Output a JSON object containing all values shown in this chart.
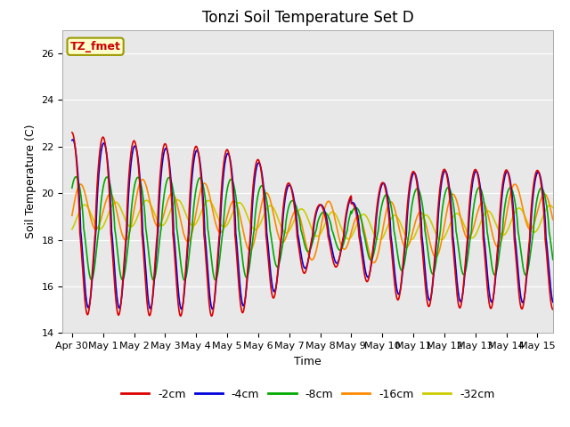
{
  "title": "Tonzi Soil Temperature Set D",
  "xlabel": "Time",
  "ylabel": "Soil Temperature (C)",
  "ylim": [
    14,
    27
  ],
  "xlim": [
    -0.3,
    15.5
  ],
  "xtick_labels": [
    "Apr 30",
    "May 1",
    "May 2",
    "May 3",
    "May 4",
    "May 5",
    "May 6",
    "May 7",
    "May 8",
    "May 9",
    "May 10",
    "May 11",
    "May 12",
    "May 13",
    "May 14",
    "May 15"
  ],
  "xtick_positions": [
    0,
    1,
    2,
    3,
    4,
    5,
    6,
    7,
    8,
    9,
    10,
    11,
    12,
    13,
    14,
    15
  ],
  "ytick_labels": [
    "14",
    "16",
    "18",
    "20",
    "22",
    "24",
    "26"
  ],
  "ytick_positions": [
    14,
    16,
    18,
    20,
    22,
    24,
    26
  ],
  "legend_label": "TZ_fmet",
  "colors": {
    "-2cm": "#dd0000",
    "-4cm": "#0000dd",
    "-8cm": "#00aa00",
    "-16cm": "#ff8800",
    "-32cm": "#cccc00"
  },
  "legend_order": [
    "-2cm",
    "-4cm",
    "-8cm",
    "-16cm",
    "-32cm"
  ],
  "background_color": "#e8e8e8",
  "title_fontsize": 12,
  "axis_fontsize": 9,
  "tick_fontsize": 8,
  "annotation_color": "#cc0000",
  "annotation_bg": "#ffffcc",
  "annotation_border": "#999900"
}
